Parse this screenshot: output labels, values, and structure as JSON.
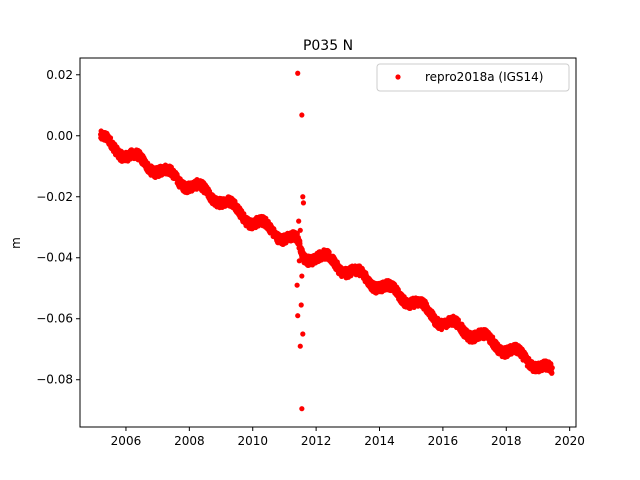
{
  "chart_data": {
    "type": "scatter",
    "title": "P035 N",
    "xlabel": "",
    "ylabel": "m",
    "xlim": [
      2004.55,
      2020.2
    ],
    "ylim": [
      -0.0955,
      0.0255
    ],
    "xticks": [
      2006,
      2008,
      2010,
      2012,
      2014,
      2016,
      2018,
      2020
    ],
    "xtick_labels": [
      "2006",
      "2008",
      "2010",
      "2012",
      "2014",
      "2016",
      "2018",
      "2020"
    ],
    "yticks": [
      0.02,
      0.0,
      -0.02,
      -0.04,
      -0.06,
      -0.08
    ],
    "ytick_labels": [
      "0.02",
      "0.00",
      "−0.02",
      "−0.04",
      "−0.06",
      "−0.08"
    ],
    "legend_position": "top-right",
    "grid": false,
    "series": [
      {
        "name": "repro2018a (IGS14)",
        "color": "#ff0000",
        "marker": "point",
        "trend": {
          "x": [
            2005.2,
            2006.0,
            2007.0,
            2008.0,
            2009.0,
            2010.0,
            2011.0,
            2011.4,
            2011.6,
            2012.0,
            2013.0,
            2014.0,
            2015.0,
            2016.0,
            2017.0,
            2018.0,
            2019.0,
            2019.45
          ],
          "y": [
            -0.001,
            -0.006,
            -0.011,
            -0.016,
            -0.021,
            -0.028,
            -0.033,
            -0.035,
            -0.04,
            -0.039,
            -0.044,
            -0.049,
            -0.054,
            -0.061,
            -0.065,
            -0.07,
            -0.075,
            -0.078
          ]
        },
        "outliers": {
          "x": [
            2011.42,
            2011.55,
            2011.58,
            2011.6,
            2011.45,
            2011.5,
            2011.48,
            2011.52,
            2011.47,
            2011.55,
            2011.4,
            2011.42,
            2011.58,
            2011.5,
            2011.53,
            2011.55
          ],
          "y": [
            0.0205,
            0.0068,
            -0.02,
            -0.022,
            -0.028,
            -0.031,
            -0.035,
            -0.038,
            -0.041,
            -0.046,
            -0.049,
            -0.059,
            -0.065,
            -0.069,
            -0.0555,
            -0.0895
          ]
        }
      }
    ]
  }
}
